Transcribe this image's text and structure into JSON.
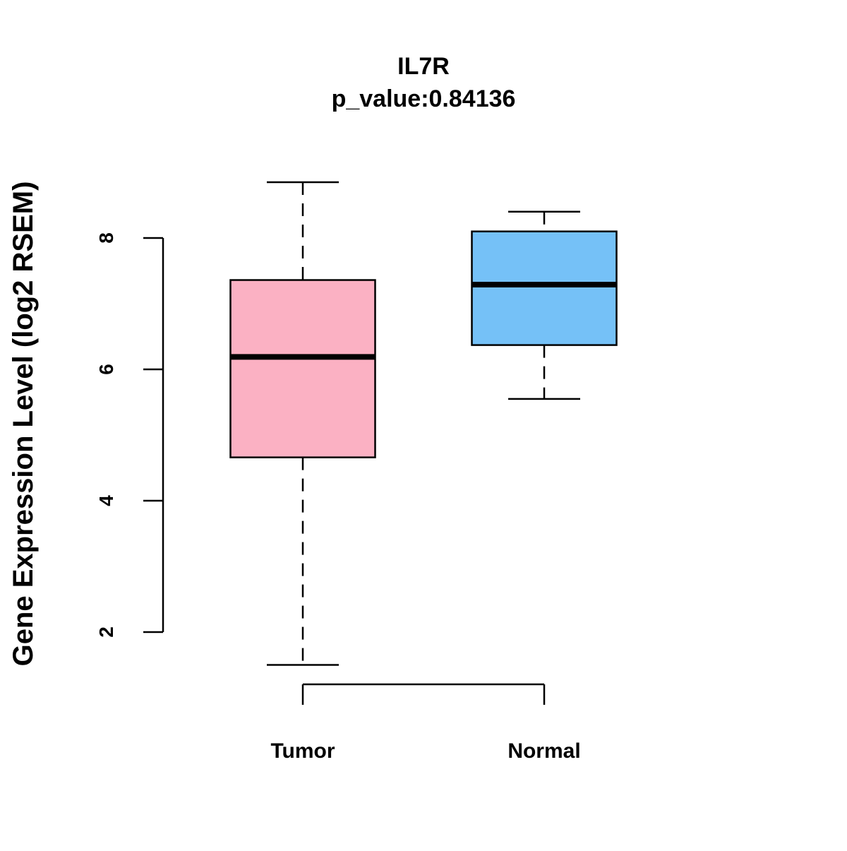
{
  "chart_data": {
    "type": "boxplot",
    "title": "IL7R",
    "subtitle": "p_value:0.84136",
    "xlabel": "",
    "ylabel": "Gene Expression Level (log2 RSEM)",
    "ylim": [
      1.2,
      9.2
    ],
    "yticks": [
      2,
      4,
      6,
      8
    ],
    "ytick_labels": [
      "2",
      "4",
      "6",
      "8"
    ],
    "grid": false,
    "categories": [
      "Tumor",
      "Normal"
    ],
    "boxes": [
      {
        "name": "Tumor",
        "whisker_low": 1.5,
        "q1": 4.66,
        "median": 6.19,
        "q3": 7.36,
        "whisker_high": 8.85,
        "color": "#FBB1C3"
      },
      {
        "name": "Normal",
        "whisker_low": 5.55,
        "q1": 6.37,
        "median": 7.29,
        "q3": 8.1,
        "whisker_high": 8.4,
        "color": "#75C1F7"
      }
    ]
  }
}
